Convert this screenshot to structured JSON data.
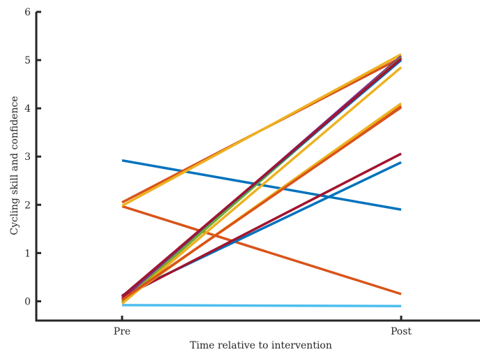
{
  "chart_data": {
    "type": "line",
    "xlabel": "Time relative to intervention",
    "ylabel": "Cycling skill and confidence",
    "categories": [
      "Pre",
      "Post"
    ],
    "ylim": [
      -0.4,
      6
    ],
    "yticks": [
      "0",
      "1",
      "2",
      "3",
      "4",
      "5",
      "6"
    ],
    "grid": false,
    "legend": "none",
    "series": [
      {
        "color": "#0072BD",
        "values": [
          2.92,
          1.9
        ]
      },
      {
        "color": "#D95319",
        "values": [
          1.97,
          0.15
        ]
      },
      {
        "color": "#D95319",
        "values": [
          2.05,
          5.05
        ]
      },
      {
        "color": "#EDB120",
        "values": [
          1.98,
          5.12
        ]
      },
      {
        "color": "#4DBEEE",
        "values": [
          -0.08,
          -0.1
        ]
      },
      {
        "color": "#0072BD",
        "values": [
          0.12,
          2.88
        ]
      },
      {
        "color": "#7E2F8E",
        "values": [
          0.05,
          5.08
        ]
      },
      {
        "color": "#A2142F",
        "values": [
          0.08,
          3.06
        ]
      },
      {
        "color": "#D95319",
        "values": [
          0.02,
          4.05
        ]
      },
      {
        "color": "#EDB120",
        "values": [
          0.0,
          4.1
        ]
      },
      {
        "color": "#77AC30",
        "values": [
          -0.02,
          5.05
        ]
      },
      {
        "color": "#EDB120",
        "values": [
          -0.05,
          4.85
        ]
      },
      {
        "color": "#D95319",
        "values": [
          0.03,
          4.02
        ]
      },
      {
        "color": "#0072BD",
        "values": [
          0.1,
          5.0
        ]
      },
      {
        "color": "#A2142F",
        "values": [
          0.1,
          5.03
        ]
      }
    ]
  }
}
